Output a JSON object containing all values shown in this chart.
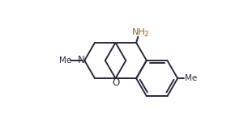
{
  "bg_color": "#ffffff",
  "line_color": "#2a2a3e",
  "line_width": 1.4,
  "font_size": 7.5,
  "nh2_color": "#8b6914",
  "n_label": "N",
  "o_label": "O",
  "nh2_label": "NH",
  "nh2_sub": "2",
  "me_label": "Me",
  "xlim": [
    -4.5,
    6.5
  ],
  "ylim": [
    -3.2,
    3.2
  ],
  "figsize": [
    3.06,
    1.5
  ],
  "dpi": 100
}
